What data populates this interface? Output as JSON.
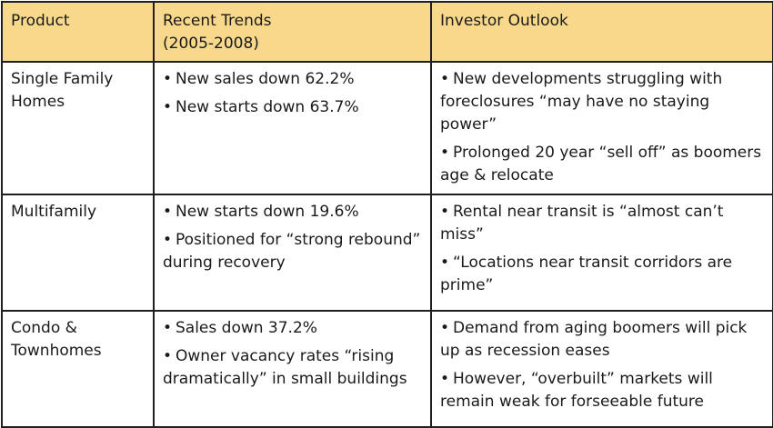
{
  "table": {
    "headers": [
      "Product",
      "Recent Trends",
      "Investor Outlook"
    ],
    "header_sub": "(2005-2008)",
    "rows": [
      {
        "product": [
          "Single Family",
          "Homes"
        ],
        "trends": [
          "New sales down 62.2%",
          "New starts down 63.7%"
        ],
        "outlook": [
          "New developments struggling with foreclosures “may have no staying power”",
          "Prolonged 20 year “sell off” as boomers age & relocate"
        ]
      },
      {
        "product": [
          "Multifamily"
        ],
        "trends": [
          "New starts down 19.6%",
          "Positioned for “strong rebound” during recovery"
        ],
        "outlook": [
          "Rental near transit is “almost can’t miss”",
          "“Locations near transit corridors are prime”"
        ]
      },
      {
        "product": [
          "Condo &",
          "Townhomes"
        ],
        "trends": [
          "Sales down 37.2%",
          "Owner vacancy rates “rising dramatically” in small buildings"
        ],
        "outlook": [
          "Demand from aging boomers will pick up as recession eases",
          "However, “overbuilt” markets will remain weak for forseeable future"
        ]
      }
    ],
    "bullet_glyph": "•",
    "header_bg": "#f8d98b",
    "border_color": "#1f1f1f"
  }
}
